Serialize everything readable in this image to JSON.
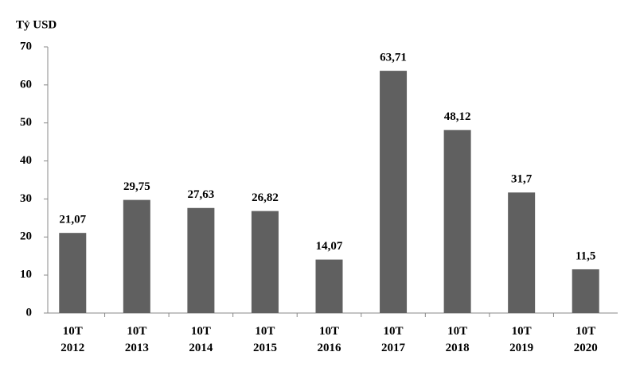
{
  "chart_data": {
    "type": "bar",
    "y_label": "Tỷ USD",
    "categories": [
      "10T 2012",
      "10T 2013",
      "10T 2014",
      "10T 2015",
      "10T 2016",
      "10T 2017",
      "10T 2018",
      "10T 2019",
      "10T 2020"
    ],
    "values": [
      21.07,
      29.75,
      27.63,
      26.82,
      14.07,
      63.71,
      48.12,
      31.7,
      11.5
    ],
    "value_labels": [
      "21,07",
      "29,75",
      "27,63",
      "26,82",
      "14,07",
      "63,71",
      "48,12",
      "31,7",
      "11,5"
    ],
    "color": "#606060",
    "ylim": [
      0,
      70
    ],
    "yticks": [
      0,
      10,
      20,
      30,
      40,
      50,
      60,
      70
    ],
    "grid": false
  }
}
